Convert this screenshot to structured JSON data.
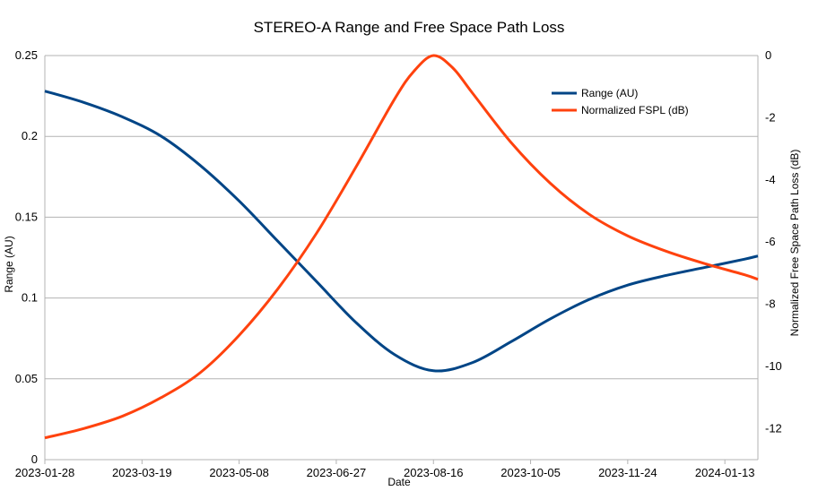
{
  "chart_data": {
    "type": "line",
    "title": "STEREO-A Range and Free Space Path Loss",
    "xlabel": "Date",
    "ylabel": "Range (AU)",
    "y2label": "Normalized Free Space Path Loss (dB)",
    "x_ticks": [
      "2023-01-28",
      "2023-03-19",
      "2023-05-08",
      "2023-06-27",
      "2023-08-16",
      "2023-10-05",
      "2023-11-24",
      "2024-01-13"
    ],
    "xlim": [
      "2023-01-28",
      "2024-01-30"
    ],
    "ylim": [
      0,
      0.25
    ],
    "y_ticks": [
      "0",
      "0.05",
      "0.1",
      "0.15",
      "0.2",
      "0.25"
    ],
    "y2lim": [
      -13,
      0
    ],
    "y2_ticks": [
      "0",
      "-2",
      "-4",
      "-6",
      "-8",
      "-10",
      "-12"
    ],
    "grid": true,
    "legend": "top-right",
    "series": [
      {
        "name": "Range (AU)",
        "axis": "left",
        "color": "#004586",
        "x": [
          "2023-01-28",
          "2023-02-17",
          "2023-03-09",
          "2023-03-29",
          "2023-04-18",
          "2023-05-08",
          "2023-05-28",
          "2023-06-17",
          "2023-07-07",
          "2023-07-27",
          "2023-08-16",
          "2023-09-05",
          "2023-09-25",
          "2023-10-15",
          "2023-11-04",
          "2023-11-24",
          "2023-12-14",
          "2024-01-03",
          "2024-01-23",
          "2024-01-30"
        ],
        "values": [
          0.228,
          0.221,
          0.212,
          0.2,
          0.182,
          0.16,
          0.135,
          0.11,
          0.085,
          0.065,
          0.055,
          0.06,
          0.073,
          0.087,
          0.099,
          0.108,
          0.114,
          0.119,
          0.124,
          0.126
        ]
      },
      {
        "name": "Normalized FSPL (dB)",
        "axis": "right",
        "color": "#ff420e",
        "x": [
          "2023-01-28",
          "2023-02-17",
          "2023-03-09",
          "2023-03-29",
          "2023-04-18",
          "2023-05-08",
          "2023-05-28",
          "2023-06-17",
          "2023-07-07",
          "2023-07-27",
          "2023-08-06",
          "2023-08-16",
          "2023-08-26",
          "2023-09-05",
          "2023-09-25",
          "2023-10-15",
          "2023-11-04",
          "2023-11-24",
          "2023-12-14",
          "2024-01-03",
          "2024-01-23",
          "2024-01-30"
        ],
        "values": [
          -12.3,
          -12.0,
          -11.6,
          -11.0,
          -10.2,
          -9.0,
          -7.5,
          -5.7,
          -3.6,
          -1.4,
          -0.5,
          0.0,
          -0.4,
          -1.2,
          -2.8,
          -4.1,
          -5.1,
          -5.8,
          -6.3,
          -6.7,
          -7.05,
          -7.2
        ]
      }
    ]
  }
}
